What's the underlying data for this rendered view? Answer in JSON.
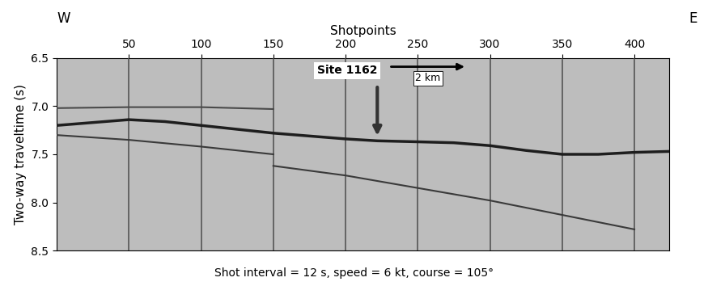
{
  "chart_data": {
    "type": "seismic_section",
    "x_label": "Shotpoints",
    "y_label": "Two-way traveltime (s)",
    "caption": "Shot interval = 12 s, speed = 6 kt, course = 105°",
    "side_labels": {
      "left": "W",
      "right": "E"
    },
    "xlim": [
      0,
      424
    ],
    "xticks": [
      50,
      100,
      150,
      200,
      250,
      300,
      350,
      400
    ],
    "ylim": [
      8.5,
      6.5
    ],
    "yticks": [
      6.5,
      7.0,
      7.5,
      8.0,
      8.5
    ],
    "grid": "x",
    "series": [
      {
        "color": "#1e1e1e",
        "line_style": "solid",
        "x": [
          0,
          25,
          50,
          75,
          100,
          125,
          150,
          175,
          200,
          222,
          250,
          275,
          300,
          325,
          350,
          375,
          400,
          424
        ],
        "values": [
          7.2,
          7.17,
          7.14,
          7.16,
          7.2,
          7.24,
          7.28,
          7.31,
          7.34,
          7.36,
          7.37,
          7.38,
          7.41,
          7.46,
          7.5,
          7.5,
          7.48,
          7.47
        ]
      },
      {
        "color": "#4a4a4a",
        "line_style": "solid",
        "x": [
          0,
          50,
          100,
          150
        ],
        "values": [
          7.02,
          7.01,
          7.01,
          7.03
        ]
      },
      {
        "color": "#3a3a3a",
        "line_style": "solid",
        "x": [
          150,
          200,
          250,
          300,
          350,
          400
        ],
        "values": [
          7.62,
          7.72,
          7.85,
          7.98,
          8.13,
          8.28
        ]
      },
      {
        "color": "#3a3a3a",
        "line_style": "solid",
        "x": [
          0,
          50,
          100,
          150
        ],
        "values": [
          7.3,
          7.35,
          7.42,
          7.5
        ]
      }
    ],
    "annotations": [
      {
        "text": "Site 1162",
        "text_x": 201,
        "text_y": 6.63,
        "x": 222,
        "y_from": 6.78,
        "y": 7.33
      }
    ],
    "scale_bar": {
      "label": "2 km",
      "x": [
        230,
        284
      ],
      "y": 6.59,
      "label_y": 6.71
    }
  }
}
